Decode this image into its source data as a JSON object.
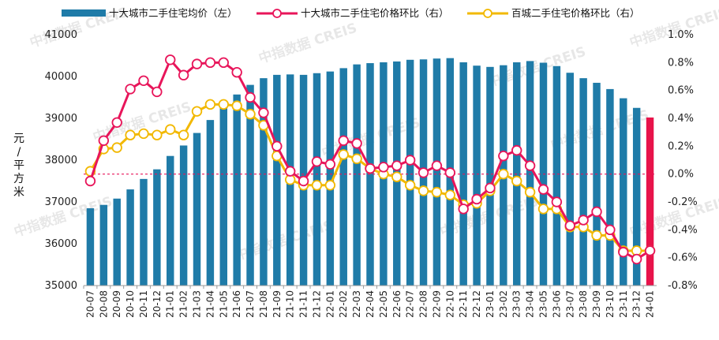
{
  "chart_data": {
    "type": "bar+line",
    "categories": [
      "20-07",
      "20-08",
      "20-09",
      "20-10",
      "20-11",
      "20-12",
      "21-01",
      "21-02",
      "21-03",
      "21-04",
      "21-05",
      "21-06",
      "21-07",
      "21-08",
      "21-09",
      "21-10",
      "21-11",
      "21-12",
      "22-01",
      "22-02",
      "22-03",
      "22-04",
      "22-05",
      "22-06",
      "22-07",
      "22-08",
      "22-09",
      "22-10",
      "22-11",
      "22-12",
      "23-01",
      "23-02",
      "23-03",
      "23-04",
      "23-05",
      "23-06",
      "23-07",
      "23-08",
      "23-09",
      "23-10",
      "23-11",
      "23-12",
      "24-01"
    ],
    "series": [
      {
        "name": "十大城市二手住宅均价（左）",
        "type": "bar",
        "axis": "left",
        "values": [
          36850,
          36930,
          37080,
          37300,
          37550,
          37780,
          38100,
          38350,
          38650,
          38960,
          39250,
          39570,
          39800,
          39960,
          40040,
          40050,
          40040,
          40080,
          40120,
          40200,
          40290,
          40320,
          40340,
          40360,
          40400,
          40410,
          40430,
          40440,
          40340,
          40260,
          40230,
          40270,
          40340,
          40370,
          40330,
          40250,
          40090,
          39960,
          39850,
          39700,
          39480,
          39250,
          39020
        ]
      },
      {
        "name": "十大城市二手住宅价格环比（右）",
        "type": "line",
        "axis": "right",
        "values": [
          -0.05,
          0.24,
          0.37,
          0.61,
          0.67,
          0.59,
          0.82,
          0.71,
          0.79,
          0.8,
          0.8,
          0.73,
          0.55,
          0.44,
          0.2,
          0.02,
          -0.05,
          0.09,
          0.07,
          0.24,
          0.22,
          0.04,
          0.05,
          0.06,
          0.1,
          0.01,
          0.06,
          0.01,
          -0.25,
          -0.18,
          -0.1,
          0.13,
          0.17,
          0.06,
          -0.11,
          -0.2,
          -0.37,
          -0.33,
          -0.27,
          -0.4,
          -0.56,
          -0.61,
          -0.55
        ]
      },
      {
        "name": "百城二手住宅价格环比（右）",
        "type": "line",
        "axis": "right",
        "values": [
          0.02,
          0.18,
          0.19,
          0.28,
          0.29,
          0.28,
          0.32,
          0.28,
          0.45,
          0.5,
          0.5,
          0.49,
          0.43,
          0.35,
          0.13,
          -0.04,
          -0.08,
          -0.08,
          -0.08,
          0.14,
          0.11,
          0.04,
          0.0,
          -0.02,
          -0.08,
          -0.12,
          -0.13,
          -0.15,
          -0.22,
          -0.21,
          -0.12,
          0.0,
          -0.05,
          -0.13,
          -0.25,
          -0.25,
          -0.38,
          -0.38,
          -0.44,
          -0.44,
          -0.55,
          -0.55,
          -0.55
        ]
      }
    ],
    "left_axis": {
      "label": "元/平方米",
      "min": 35000,
      "max": 41000,
      "ticks": [
        "35000",
        "36000",
        "37000",
        "38000",
        "39000",
        "40000",
        "41000"
      ]
    },
    "right_axis": {
      "min": -0.8,
      "max": 1.0,
      "ticks": [
        "-0.8%",
        "-0.6%",
        "-0.4%",
        "-0.2%",
        "0.0%",
        "0.2%",
        "0.4%",
        "0.6%",
        "0.8%",
        "1.0%"
      ]
    },
    "highlight_last_bar": true,
    "zero_reference_line": true,
    "legend_position": "top",
    "grid": false,
    "colors": {
      "bar": "#1f7ba8",
      "bar_highlight": "#e8134a",
      "line_ten_city": "#e8155a",
      "line_hundred_city": "#f2b800",
      "marker_fill": "#ffffff",
      "zero_line": "#e8155a"
    },
    "watermark": "中指数据 CREIS"
  }
}
